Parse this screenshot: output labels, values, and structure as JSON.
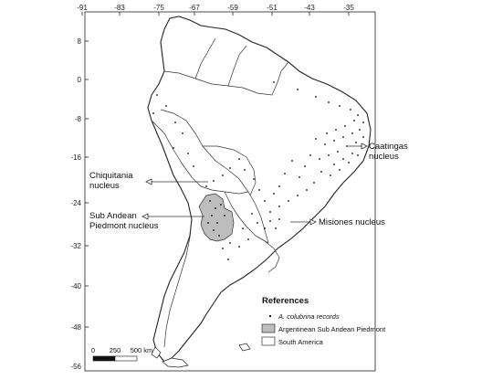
{
  "map": {
    "lon_ticks": [
      "-91",
      "-83",
      "-75",
      "-67",
      "-59",
      "-51",
      "-43",
      "-35"
    ],
    "lat_ticks": [
      "8",
      "0",
      "-8",
      "-16",
      "-24",
      "-32",
      "-40",
      "-48",
      "-56"
    ],
    "nuclei": {
      "caatingas": [
        "Caatingas",
        "nucleus"
      ],
      "chiquitania": [
        "Chiquitania",
        "nucleus"
      ],
      "subandean": [
        "Sub Andean",
        "Piedmont nucleus"
      ],
      "misiones": "Misiones nucleus"
    },
    "references": {
      "title": "References",
      "records": "A. colubrina records",
      "piedmont": "Argentinean Sub Andean Piedmont",
      "south_america": "South America"
    },
    "scale": {
      "zero": "0",
      "mid": "250",
      "end": "500 km"
    },
    "colors": {
      "land_fill": "#ffffff",
      "outline": "#222222",
      "piedmont_fill": "#bdbdbd",
      "record": "#000000"
    }
  }
}
